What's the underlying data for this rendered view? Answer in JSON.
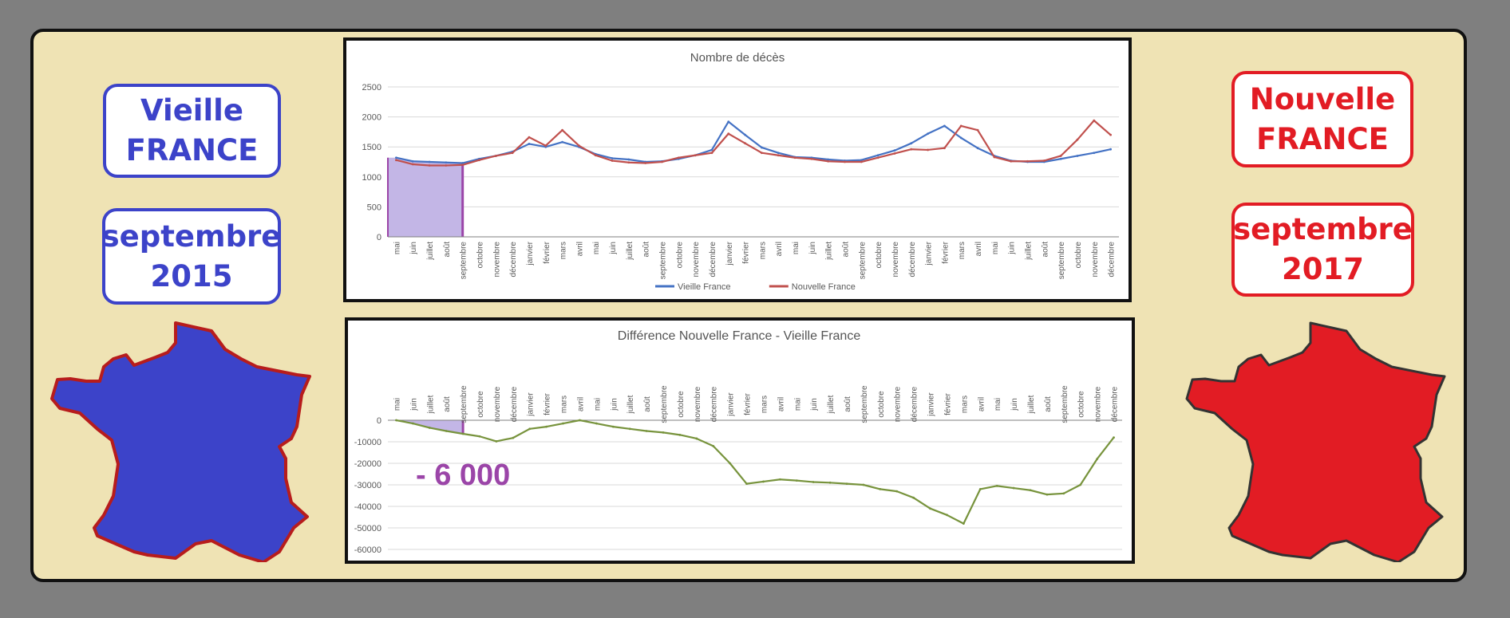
{
  "left": {
    "title": "Vieille\nFRANCE",
    "date": "septembre\n2015",
    "color": "#3c43c9",
    "map_icon": "france-map-blue"
  },
  "right": {
    "title": "Nouvelle\nFRANCE",
    "date": "septembre\n2017",
    "color": "#e21c24",
    "map_icon": "france-map-red"
  },
  "chart_data": [
    {
      "type": "line",
      "title": "Nombre de décès",
      "categories": [
        "mai",
        "juin",
        "juillet",
        "août",
        "septembre",
        "octobre",
        "novembre",
        "décembre",
        "janvier",
        "février",
        "mars",
        "avril",
        "mai",
        "juin",
        "juillet",
        "août",
        "septembre",
        "octobre",
        "novembre",
        "décembre",
        "janvier",
        "février",
        "mars",
        "avril",
        "mai",
        "juin",
        "juillet",
        "août",
        "septembre",
        "octobre",
        "novembre",
        "décembre",
        "janvier",
        "février",
        "mars",
        "avril",
        "mai",
        "juin",
        "juillet",
        "août",
        "septembre",
        "octobre",
        "novembre",
        "décembre"
      ],
      "yticks": [
        0,
        500,
        1000,
        1500,
        2000,
        2500
      ],
      "ylim": [
        0,
        2500
      ],
      "legend_position": "bottom",
      "grid": true,
      "highlight": {
        "from_index": 0,
        "to_index": 4,
        "color": "#c3b6e6"
      },
      "series": [
        {
          "name": "Vieille France",
          "color": "#4472c4",
          "values": [
            1320,
            1260,
            1250,
            1240,
            1230,
            1300,
            1350,
            1420,
            1550,
            1500,
            1580,
            1500,
            1380,
            1310,
            1290,
            1250,
            1260,
            1300,
            1360,
            1450,
            1920,
            1700,
            1490,
            1400,
            1330,
            1320,
            1290,
            1270,
            1280,
            1360,
            1440,
            1560,
            1720,
            1850,
            1650,
            1480,
            1350,
            1270,
            1250,
            1250,
            1300,
            1350,
            1400,
            1460
          ]
        },
        {
          "name": "Nouvelle France",
          "color": "#c0504d",
          "values": [
            1280,
            1210,
            1190,
            1190,
            1200,
            1280,
            1350,
            1400,
            1660,
            1520,
            1780,
            1520,
            1360,
            1270,
            1240,
            1230,
            1250,
            1320,
            1360,
            1400,
            1720,
            1560,
            1400,
            1360,
            1320,
            1300,
            1260,
            1250,
            1250,
            1320,
            1390,
            1460,
            1450,
            1480,
            1850,
            1780,
            1330,
            1260,
            1260,
            1270,
            1350,
            1620,
            1940,
            1700
          ]
        }
      ]
    },
    {
      "type": "line",
      "title": "Différence Nouvelle France - Vieille France",
      "categories": [
        "mai",
        "juin",
        "juillet",
        "août",
        "septembre",
        "octobre",
        "novembre",
        "décembre",
        "janvier",
        "février",
        "mars",
        "avril",
        "mai",
        "juin",
        "juillet",
        "août",
        "septembre",
        "octobre",
        "novembre",
        "décembre",
        "janvier",
        "février",
        "mars",
        "avril",
        "mai",
        "juin",
        "juillet",
        "août",
        "septembre",
        "octobre",
        "novembre",
        "décembre",
        "janvier",
        "février",
        "mars",
        "avril",
        "mai",
        "juin",
        "juillet",
        "août",
        "septembre",
        "octobre",
        "novembre",
        "décembre"
      ],
      "yticks": [
        0,
        -10000,
        -20000,
        -30000,
        -40000,
        -50000,
        -60000
      ],
      "ylim": [
        -60000,
        0
      ],
      "grid": true,
      "annotation": "- 6 000",
      "highlight": {
        "from_index": 0,
        "to_index": 4,
        "color": "#c3b6e6"
      },
      "series": [
        {
          "name": "",
          "color": "#77933c",
          "values": [
            0,
            -1500,
            -3500,
            -5000,
            -6300,
            -7500,
            -9800,
            -8200,
            -4000,
            -3000,
            -1500,
            0,
            -1500,
            -3000,
            -4000,
            -5000,
            -5700,
            -6800,
            -8500,
            -12000,
            -20000,
            -29500,
            -28500,
            -27500,
            -28000,
            -28700,
            -29000,
            -29500,
            -30000,
            -32000,
            -33000,
            -36000,
            -41000,
            -44000,
            -48000,
            -32000,
            -30500,
            -31500,
            -32500,
            -34500,
            -34000,
            -30000,
            -18000,
            -8000
          ]
        }
      ]
    }
  ]
}
